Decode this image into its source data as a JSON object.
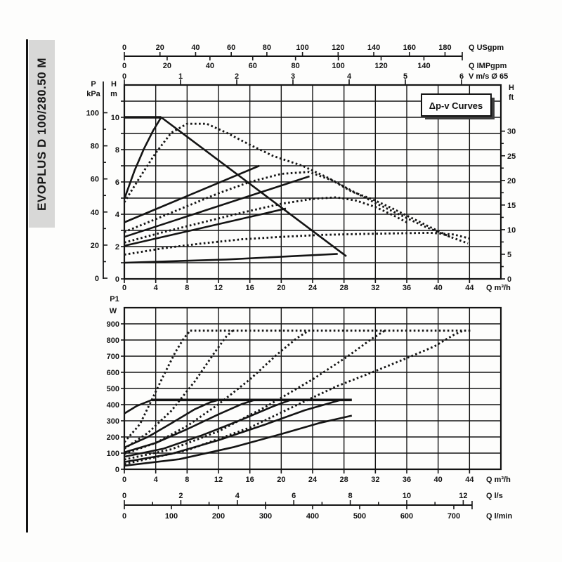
{
  "sidebar": {
    "model": "EVOPLUS D 100/280.50 M"
  },
  "chart_data": [
    {
      "id": "head-flow-chart",
      "type": "line",
      "annotation": "Δp-v Curves",
      "axes": {
        "left_outer": {
          "title": [
            "P",
            "kPa"
          ],
          "ticks": [
            0,
            20,
            40,
            60,
            80,
            100
          ]
        },
        "left_inner": {
          "title": [
            "H",
            "m"
          ],
          "ticks": [
            0,
            2,
            4,
            6,
            8,
            10
          ]
        },
        "right": {
          "title": [
            "H",
            "ft"
          ],
          "ticks": [
            0,
            5,
            10,
            15,
            20,
            25,
            30
          ]
        },
        "top1": {
          "title": "Q USgpm",
          "ticks": [
            0,
            20,
            40,
            60,
            80,
            100,
            120,
            140,
            160,
            180
          ]
        },
        "top2": {
          "title": "Q IMPgpm",
          "ticks": [
            0,
            20,
            40,
            60,
            80,
            100,
            120,
            140
          ]
        },
        "top3": {
          "title": "V m/s Ø 65",
          "ticks": [
            0,
            1,
            2,
            3,
            4,
            5,
            6
          ]
        },
        "bottom": {
          "title": "Q m³/h",
          "ticks": [
            0,
            4,
            8,
            12,
            16,
            20,
            24,
            28,
            32,
            36,
            40,
            44
          ]
        }
      },
      "xlim": [
        0,
        48
      ],
      "ylim": [
        0,
        12
      ],
      "series": [
        {
          "name": "max-head-limit",
          "style": "solid",
          "width": 3.6,
          "points": [
            [
              0,
              10
            ],
            [
              4.7,
              10
            ]
          ]
        },
        {
          "name": "pv-rise-max",
          "style": "solid",
          "width": 2.6,
          "points": [
            [
              0,
              4.95
            ],
            [
              1.3,
              6.7
            ],
            [
              2.5,
              8.05
            ],
            [
              3.7,
              9.2
            ],
            [
              4.7,
              10
            ]
          ]
        },
        {
          "name": "max-speed-curve",
          "style": "solid",
          "width": 2.6,
          "points": [
            [
              4.7,
              10
            ],
            [
              28.3,
              1.4
            ]
          ]
        },
        {
          "name": "setpoint-line-1",
          "style": "solid",
          "width": 2.6,
          "points": [
            [
              0,
              3.5
            ],
            [
              17.2,
              7.0
            ]
          ]
        },
        {
          "name": "setpoint-line-2",
          "style": "solid",
          "width": 2.6,
          "points": [
            [
              0,
              2.6
            ],
            [
              23.6,
              6.35
            ]
          ]
        },
        {
          "name": "setpoint-line-3",
          "style": "solid",
          "width": 2.6,
          "points": [
            [
              0,
              2.05
            ],
            [
              20.6,
              4.35
            ]
          ]
        },
        {
          "name": "setpoint-line-4",
          "style": "solid",
          "width": 2.6,
          "points": [
            [
              0,
              1.0
            ],
            [
              13,
              1.2
            ],
            [
              27.2,
              1.55
            ]
          ]
        },
        {
          "name": "dpv-curve-1",
          "style": "dotted",
          "width": 2.9,
          "points": [
            [
              0,
              4.75
            ],
            [
              2,
              6.3
            ],
            [
              4,
              7.8
            ],
            [
              6,
              9.05
            ],
            [
              8,
              9.6
            ],
            [
              10.5,
              9.6
            ],
            [
              13,
              9.05
            ],
            [
              16,
              8.3
            ],
            [
              19,
              7.6
            ],
            [
              22.7,
              7.0
            ],
            [
              26,
              6.25
            ],
            [
              29,
              5.45
            ],
            [
              32,
              4.7
            ],
            [
              35,
              4.0
            ],
            [
              38,
              3.3
            ],
            [
              41,
              2.7
            ],
            [
              43.8,
              2.2
            ]
          ]
        },
        {
          "name": "dpv-curve-2",
          "style": "dotted",
          "width": 2.9,
          "points": [
            [
              0,
              2.9
            ],
            [
              4,
              3.7
            ],
            [
              8,
              4.5
            ],
            [
              12,
              5.3
            ],
            [
              16,
              6.0
            ],
            [
              20,
              6.5
            ],
            [
              23.5,
              6.62
            ],
            [
              26.5,
              6.1
            ],
            [
              29,
              5.4
            ],
            [
              31.5,
              4.95
            ],
            [
              34,
              4.4
            ],
            [
              36.5,
              3.8
            ],
            [
              39,
              3.2
            ],
            [
              41.5,
              2.6
            ]
          ]
        },
        {
          "name": "dpv-curve-3",
          "style": "dotted",
          "width": 2.9,
          "points": [
            [
              0,
              2.25
            ],
            [
              5,
              2.9
            ],
            [
              10,
              3.5
            ],
            [
              15,
              4.1
            ],
            [
              20,
              4.65
            ],
            [
              24,
              4.95
            ],
            [
              27,
              5.05
            ],
            [
              29.5,
              4.85
            ],
            [
              32,
              4.45
            ],
            [
              34.2,
              3.95
            ],
            [
              36,
              3.5
            ]
          ]
        },
        {
          "name": "dpv-curve-4",
          "style": "dotted",
          "width": 2.9,
          "points": [
            [
              0,
              1.5
            ],
            [
              5,
              1.9
            ],
            [
              10,
              2.2
            ],
            [
              15,
              2.45
            ],
            [
              20,
              2.6
            ],
            [
              25,
              2.72
            ],
            [
              30,
              2.78
            ],
            [
              35,
              2.82
            ],
            [
              39,
              2.85
            ],
            [
              42,
              2.75
            ],
            [
              44,
              2.5
            ]
          ]
        }
      ]
    },
    {
      "id": "power-flow-chart",
      "type": "line",
      "axes": {
        "left": {
          "title": [
            "P1",
            "W"
          ],
          "ticks": [
            0,
            100,
            200,
            300,
            400,
            500,
            600,
            700,
            800,
            900
          ]
        },
        "bottom1": {
          "title": "Q m³/h",
          "ticks": [
            0,
            4,
            8,
            12,
            16,
            20,
            24,
            28,
            32,
            36,
            40,
            44
          ]
        },
        "bottom2": {
          "title": "Q l/s",
          "ticks": [
            0,
            2,
            4,
            6,
            8,
            10,
            12
          ]
        },
        "bottom3": {
          "title": "Q l/min",
          "ticks": [
            0,
            100,
            200,
            300,
            400,
            500,
            600,
            700
          ]
        }
      },
      "xlim": [
        0,
        48
      ],
      "ylim": [
        0,
        1000
      ],
      "series": [
        {
          "name": "p1-limit-430w",
          "style": "solid",
          "width": 3.6,
          "points": [
            [
              3.5,
              429
            ],
            [
              29,
              429
            ]
          ]
        },
        {
          "name": "p1-rise-max",
          "style": "solid",
          "width": 2.6,
          "points": [
            [
              0,
              345
            ],
            [
              1.6,
              392
            ],
            [
              3.5,
              429
            ]
          ]
        },
        {
          "name": "p1-curve-1",
          "style": "solid",
          "width": 2.6,
          "points": [
            [
              0,
              135
            ],
            [
              3,
              200
            ],
            [
              6,
              285
            ],
            [
              9,
              372
            ],
            [
              11,
              415
            ],
            [
              12,
              429
            ]
          ]
        },
        {
          "name": "p1-curve-2",
          "style": "solid",
          "width": 2.6,
          "points": [
            [
              0,
              105
            ],
            [
              4,
              163
            ],
            [
              8,
              248
            ],
            [
              12,
              340
            ],
            [
              15,
              404
            ],
            [
              16.6,
              429
            ]
          ]
        },
        {
          "name": "p1-curve-3",
          "style": "solid",
          "width": 2.6,
          "points": [
            [
              0,
              78
            ],
            [
              5,
              128
            ],
            [
              10,
              212
            ],
            [
              15,
              308
            ],
            [
              19,
              390
            ],
            [
              21.2,
              429
            ]
          ]
        },
        {
          "name": "p1-curve-4",
          "style": "solid",
          "width": 2.6,
          "points": [
            [
              0,
              45
            ],
            [
              6,
              95
            ],
            [
              12,
              180
            ],
            [
              18,
              278
            ],
            [
              23,
              365
            ],
            [
              26.2,
              410
            ],
            [
              27.6,
              429
            ]
          ]
        },
        {
          "name": "p1-curve-5",
          "style": "solid",
          "width": 2.6,
          "points": [
            [
              0,
              22
            ],
            [
              7,
              62
            ],
            [
              14,
              138
            ],
            [
              20,
              218
            ],
            [
              25,
              288
            ],
            [
              29,
              332
            ]
          ]
        },
        {
          "name": "dpv-power-limit-860w",
          "style": "dotted",
          "width": 2.9,
          "points": [
            [
              8.4,
              858
            ],
            [
              44.3,
              858
            ]
          ]
        },
        {
          "name": "dpv-power-1",
          "style": "dotted",
          "width": 2.9,
          "points": [
            [
              0,
              168
            ],
            [
              2,
              280
            ],
            [
              3.5,
              430
            ],
            [
              5,
              580
            ],
            [
              6.5,
              725
            ],
            [
              7.6,
              812
            ],
            [
              8.4,
              858
            ]
          ]
        },
        {
          "name": "dpv-power-2",
          "style": "dotted",
          "width": 2.9,
          "points": [
            [
              0,
              128
            ],
            [
              3,
              225
            ],
            [
              6,
              362
            ],
            [
              9,
              545
            ],
            [
              11.5,
              722
            ],
            [
              13,
              822
            ],
            [
              13.8,
              858
            ]
          ]
        },
        {
          "name": "dpv-power-3",
          "style": "dotted",
          "width": 2.9,
          "points": [
            [
              0,
              95
            ],
            [
              4,
              163
            ],
            [
              8,
              268
            ],
            [
              12,
              402
            ],
            [
              16,
              556
            ],
            [
              19.5,
              712
            ],
            [
              22,
              812
            ],
            [
              23.5,
              858
            ]
          ]
        },
        {
          "name": "dpv-power-4",
          "style": "dotted",
          "width": 2.9,
          "points": [
            [
              0,
              60
            ],
            [
              6,
              124
            ],
            [
              12,
              235
            ],
            [
              18,
              386
            ],
            [
              24,
              556
            ],
            [
              28.5,
              700
            ],
            [
              31.5,
              806
            ],
            [
              33.2,
              858
            ]
          ]
        },
        {
          "name": "dpv-power-5",
          "style": "dotted",
          "width": 2.9,
          "points": [
            [
              0,
              32
            ],
            [
              8,
              118
            ],
            [
              16,
              258
            ],
            [
              22,
              398
            ],
            [
              27,
              512
            ],
            [
              32,
              608
            ],
            [
              36,
              688
            ],
            [
              39.5,
              760
            ],
            [
              42,
              832
            ],
            [
              43.2,
              858
            ]
          ]
        }
      ]
    }
  ]
}
